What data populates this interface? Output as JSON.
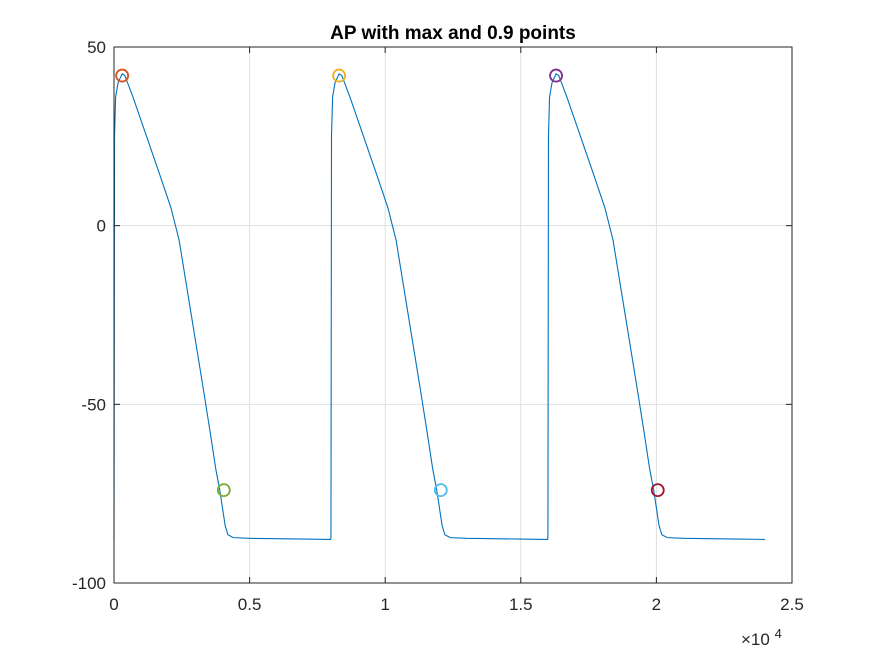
{
  "chart_data": {
    "type": "line",
    "title": "AP with max and 0.9 points",
    "xlabel": "",
    "ylabel": "",
    "xlim": [
      0,
      25000
    ],
    "ylim": [
      -100,
      50
    ],
    "x_exponent_label": "×10",
    "x_exponent_power": "4",
    "x_ticks": [
      {
        "value": 0,
        "label": "0"
      },
      {
        "value": 5000,
        "label": "0.5"
      },
      {
        "value": 10000,
        "label": "1"
      },
      {
        "value": 15000,
        "label": "1.5"
      },
      {
        "value": 20000,
        "label": "2"
      },
      {
        "value": 25000,
        "label": "2.5"
      }
    ],
    "y_ticks": [
      {
        "value": 50,
        "label": "50"
      },
      {
        "value": 0,
        "label": "0"
      },
      {
        "value": -50,
        "label": "-50"
      },
      {
        "value": -100,
        "label": "-100"
      }
    ],
    "grid": true,
    "series": [
      {
        "color": "#0072BD",
        "x": [
          0,
          20,
          60,
          150,
          300,
          400,
          700,
          1200,
          1700,
          2100,
          2400,
          2700,
          3000,
          3300,
          3550,
          3750,
          3900,
          4000,
          4100,
          4200,
          4400,
          5000,
          6000,
          7000,
          7990,
          8000,
          8020,
          8060,
          8150,
          8300,
          8400,
          8700,
          9200,
          9700,
          10100,
          10400,
          10700,
          11000,
          11300,
          11550,
          11750,
          11900,
          12000,
          12100,
          12200,
          12400,
          13000,
          14000,
          15000,
          15990,
          16000,
          16020,
          16060,
          16150,
          16300,
          16400,
          16700,
          17200,
          17700,
          18100,
          18400,
          18700,
          19000,
          19300,
          19550,
          19750,
          19900,
          20000,
          20100,
          20200,
          20400,
          21000,
          22000,
          23000,
          24000
        ],
        "y": [
          -88,
          25,
          36,
          40,
          42.5,
          42,
          36,
          25,
          14,
          5,
          -4,
          -18,
          -32,
          -46,
          -58,
          -68,
          -74,
          -79,
          -84,
          -86.5,
          -87.3,
          -87.5,
          -87.6,
          -87.7,
          -87.8,
          -87,
          25,
          36,
          40,
          42.5,
          42,
          36,
          25,
          14,
          5,
          -4,
          -18,
          -32,
          -46,
          -58,
          -68,
          -74,
          -79,
          -84,
          -86.5,
          -87.3,
          -87.5,
          -87.6,
          -87.7,
          -87.8,
          -87,
          25,
          36,
          40,
          42.5,
          42,
          36,
          25,
          14,
          5,
          -4,
          -18,
          -32,
          -46,
          -58,
          -68,
          -74,
          -79,
          -84,
          -86.5,
          -87.3,
          -87.5,
          -87.6,
          -87.7,
          -87.8
        ]
      }
    ],
    "markers": [
      {
        "x": 300,
        "y": 42,
        "color": "#D95319"
      },
      {
        "x": 4050,
        "y": -74,
        "color": "#77AC30"
      },
      {
        "x": 8300,
        "y": 42,
        "color": "#EDB120"
      },
      {
        "x": 12050,
        "y": -74,
        "color": "#4DBEEE"
      },
      {
        "x": 16300,
        "y": 42,
        "color": "#7E2F8E"
      },
      {
        "x": 20050,
        "y": -74,
        "color": "#A2142F"
      }
    ]
  }
}
